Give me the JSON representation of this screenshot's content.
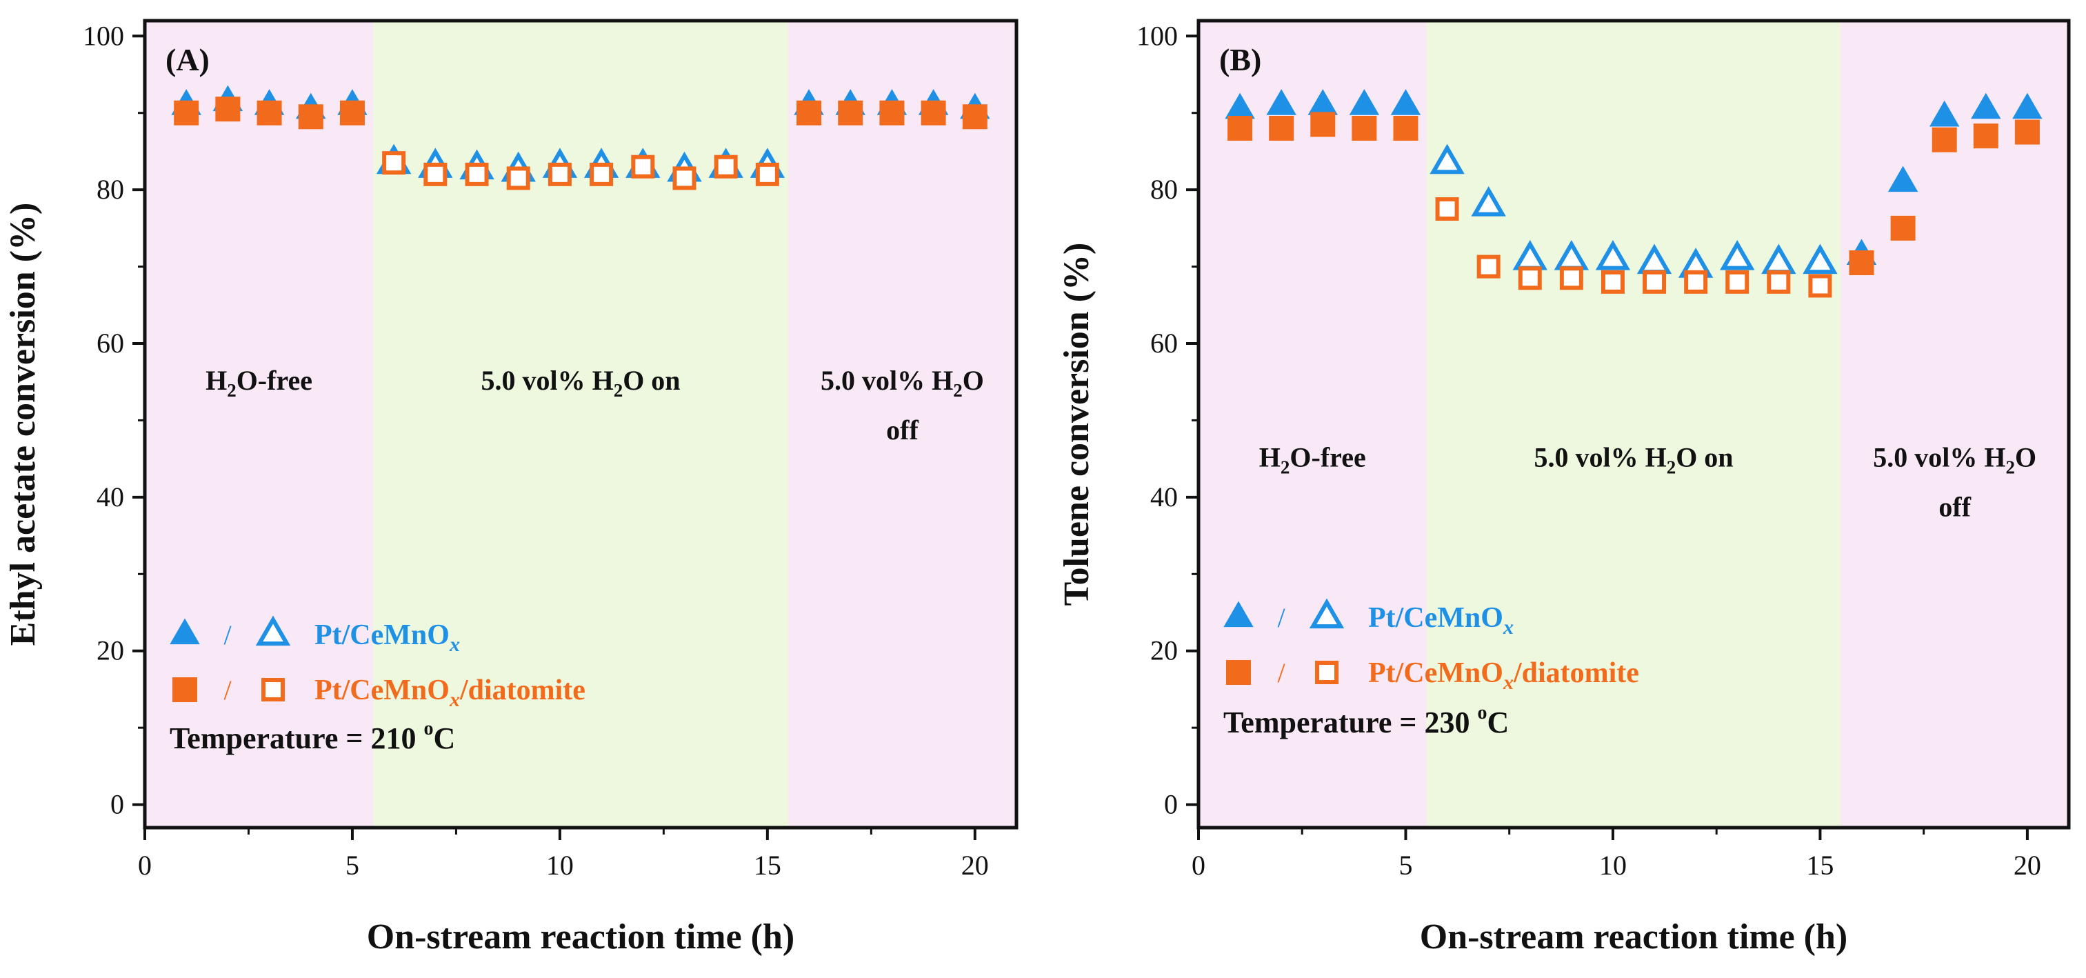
{
  "colors": {
    "blue": "#1E90E6",
    "orange": "#F26B1D",
    "pink_band": "#F9E9F6",
    "green_band": "#EDF8DE",
    "axis": "#111111"
  },
  "chart_data": [
    {
      "type": "scatter",
      "panel_label": "(A)",
      "xlabel": "On-stream reaction time (h)",
      "ylabel": "Ethyl acetate conversion (%)",
      "xlim": [
        0,
        21
      ],
      "ylim": [
        -3,
        102
      ],
      "x_ticks": [
        "0",
        "5",
        "10",
        "15",
        "20"
      ],
      "x_tick_values": [
        0,
        5,
        10,
        15,
        20
      ],
      "y_ticks": [
        "0",
        "20",
        "40",
        "60",
        "80",
        "100"
      ],
      "y_tick_values": [
        0,
        20,
        40,
        60,
        80,
        100
      ],
      "regions": [
        {
          "x0": 0,
          "x1": 5.5,
          "color": "pink",
          "label_lines": [
            "H",
            "2",
            "O-free"
          ]
        },
        {
          "x0": 5.5,
          "x1": 15.5,
          "color": "green",
          "label_lines": [
            "5.0 vol% H",
            "2",
            "O on"
          ]
        },
        {
          "x0": 15.5,
          "x1": 21,
          "color": "pink",
          "label_lines": [
            "5.0 vol% H",
            "2",
            "O",
            "off"
          ]
        }
      ],
      "region_label_y": 54,
      "series": [
        {
          "name": "Pt/CeMnOx",
          "marker": "triangle",
          "color": "blue",
          "x": [
            1,
            2,
            3,
            4,
            5,
            6,
            7,
            8,
            9,
            10,
            11,
            12,
            13,
            14,
            15,
            16,
            17,
            18,
            19,
            20
          ],
          "y": [
            91,
            91.5,
            91,
            90.5,
            91,
            83.5,
            83,
            82.8,
            82.5,
            83,
            83,
            83,
            82.5,
            83,
            83,
            91,
            91,
            91,
            91,
            90.5
          ],
          "filled": [
            true,
            true,
            true,
            true,
            true,
            false,
            false,
            false,
            false,
            false,
            false,
            false,
            false,
            false,
            false,
            true,
            true,
            true,
            true,
            true
          ]
        },
        {
          "name": "Pt/CeMnOx/diatomite",
          "marker": "square",
          "color": "orange",
          "x": [
            1,
            2,
            3,
            4,
            5,
            6,
            7,
            8,
            9,
            10,
            11,
            12,
            13,
            14,
            15,
            16,
            17,
            18,
            19,
            20
          ],
          "y": [
            90,
            90.5,
            90,
            89.5,
            90,
            83.5,
            82,
            82,
            81.5,
            82,
            82,
            83,
            81.5,
            83,
            82,
            90,
            90,
            90,
            90,
            89.5
          ],
          "filled": [
            true,
            true,
            true,
            true,
            true,
            false,
            false,
            false,
            false,
            false,
            false,
            false,
            false,
            false,
            false,
            true,
            true,
            true,
            true,
            true
          ]
        }
      ],
      "legend": {
        "separator": "/",
        "entries": [
          {
            "prefix": "Pt/CeMnO",
            "subscript": "x",
            "suffix": ""
          },
          {
            "prefix": "Pt/CeMnO",
            "subscript": "x",
            "suffix": "/diatomite"
          }
        ]
      },
      "temperature": {
        "prefix": "Temperature = 210 ",
        "sup": "o",
        "suffix": "C"
      }
    },
    {
      "type": "scatter",
      "panel_label": "(B)",
      "xlabel": "On-stream reaction time (h)",
      "ylabel": "Toluene conversion (%)",
      "xlim": [
        0,
        21
      ],
      "ylim": [
        -3,
        102
      ],
      "x_ticks": [
        "0",
        "5",
        "10",
        "15",
        "20"
      ],
      "x_tick_values": [
        0,
        5,
        10,
        15,
        20
      ],
      "y_ticks": [
        "0",
        "20",
        "40",
        "60",
        "80",
        "100"
      ],
      "y_tick_values": [
        0,
        20,
        40,
        60,
        80,
        100
      ],
      "regions": [
        {
          "x0": 0,
          "x1": 5.5,
          "color": "pink",
          "label_lines": [
            "H",
            "2",
            "O-free"
          ]
        },
        {
          "x0": 5.5,
          "x1": 15.5,
          "color": "green",
          "label_lines": [
            "5.0 vol% H",
            "2",
            "O on"
          ]
        },
        {
          "x0": 15.5,
          "x1": 21,
          "color": "pink",
          "label_lines": [
            "5.0 vol% H",
            "2",
            "O",
            "off"
          ]
        }
      ],
      "region_label_y": 44,
      "series": [
        {
          "name": "Pt/CeMnOx",
          "marker": "triangle",
          "color": "blue",
          "x": [
            1,
            2,
            3,
            4,
            5,
            6,
            7,
            8,
            9,
            10,
            11,
            12,
            13,
            14,
            15,
            16,
            17,
            18,
            19,
            20
          ],
          "y": [
            90.5,
            91,
            91,
            91,
            91,
            83.5,
            78,
            71,
            71,
            71,
            70.5,
            70,
            71,
            70.5,
            70.5,
            71.5,
            81,
            89.5,
            90.5,
            90.5
          ],
          "filled": [
            true,
            true,
            true,
            true,
            true,
            false,
            false,
            false,
            false,
            false,
            false,
            false,
            false,
            false,
            false,
            true,
            true,
            true,
            true,
            true
          ]
        },
        {
          "name": "Pt/CeMnOx/diatomite",
          "marker": "square",
          "color": "orange",
          "x": [
            1,
            2,
            3,
            4,
            5,
            6,
            7,
            8,
            9,
            10,
            11,
            12,
            13,
            14,
            15,
            16,
            17,
            18,
            19,
            20
          ],
          "y": [
            88,
            88,
            88.5,
            88,
            88,
            77.5,
            70,
            68.5,
            68.5,
            68,
            68,
            68,
            68,
            68,
            67.5,
            70.5,
            75,
            86.5,
            87,
            87.5
          ],
          "filled": [
            true,
            true,
            true,
            true,
            true,
            false,
            false,
            false,
            false,
            false,
            false,
            false,
            false,
            false,
            false,
            true,
            true,
            true,
            true,
            true
          ]
        }
      ],
      "legend": {
        "separator": "/",
        "entries": [
          {
            "prefix": "Pt/CeMnO",
            "subscript": "x",
            "suffix": ""
          },
          {
            "prefix": "Pt/CeMnO",
            "subscript": "x",
            "suffix": "/diatomite"
          }
        ]
      },
      "temperature": {
        "prefix": "Temperature = 230 ",
        "sup": "o",
        "suffix": "C"
      }
    }
  ]
}
